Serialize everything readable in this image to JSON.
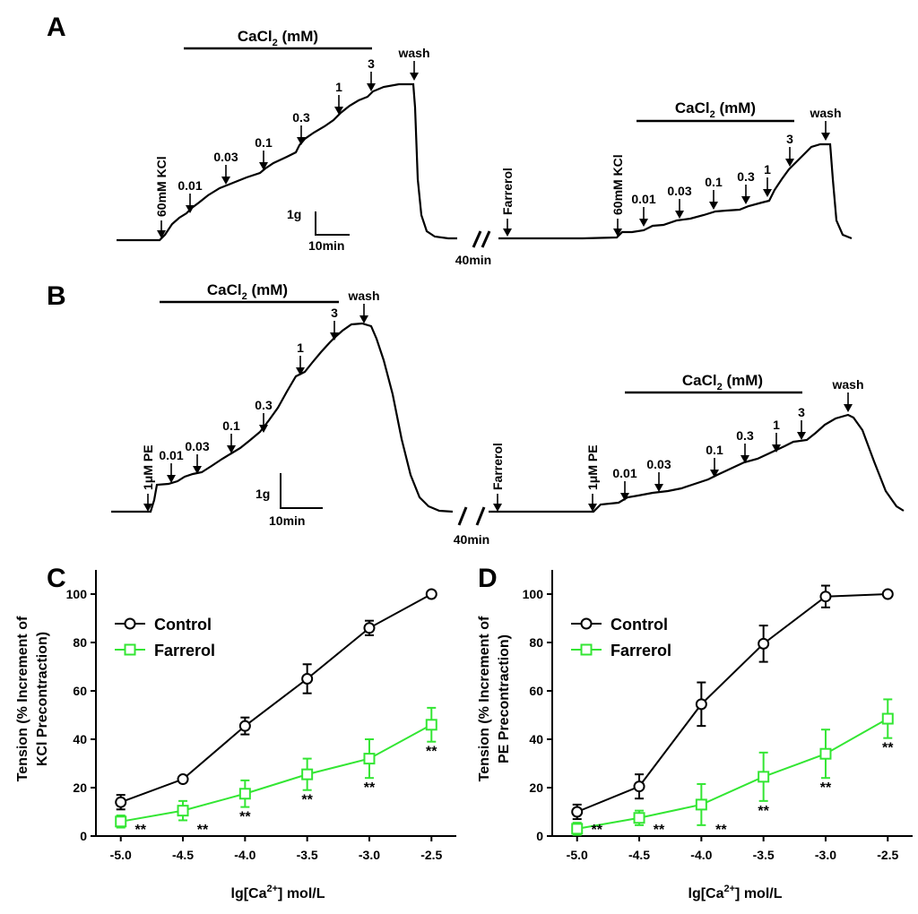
{
  "panels": {
    "A": {
      "label": "A",
      "left": {
        "header": "CaCl",
        "header_sub": "2",
        "header_unit": " (mM)",
        "stim": "60mM KCl",
        "doses": [
          "0.01",
          "0.03",
          "0.1",
          "0.3",
          "1",
          "3"
        ],
        "wash": "wash"
      },
      "right": {
        "header": "CaCl",
        "header_sub": "2",
        "header_unit": " (mM)",
        "drug": "Farrerol",
        "stim": "60mM KCl",
        "doses": [
          "0.01",
          "0.03",
          "0.1",
          "0.3",
          "1",
          "3"
        ],
        "wash": "wash"
      },
      "gap": "40min",
      "scale_y": "1g",
      "scale_x": "10min"
    },
    "B": {
      "label": "B",
      "left": {
        "header": "CaCl",
        "header_sub": "2",
        "header_unit": " (mM)",
        "stim": "1μM PE",
        "doses": [
          "0.01",
          "0.03",
          "0.1",
          "0.3",
          "1",
          "3"
        ],
        "wash": "wash"
      },
      "right": {
        "header": "CaCl",
        "header_sub": "2",
        "header_unit": " (mM)",
        "drug": "Farrerol",
        "stim": "1μM PE",
        "doses": [
          "0.01",
          "0.03",
          "0.1",
          "0.3",
          "1",
          "3"
        ],
        "wash": "wash"
      },
      "gap": "40min",
      "scale_y": "1g",
      "scale_x": "10min"
    }
  },
  "chart_data": [
    {
      "panel": "C",
      "type": "line",
      "x": [
        -5.0,
        -4.5,
        -4.0,
        -3.5,
        -3.0,
        -2.5
      ],
      "x_tick_labels": [
        "-5.0",
        "-4.5",
        "-4.0",
        "-3.5",
        "-3.0",
        "-2.5"
      ],
      "xlim": [
        -5.2,
        -2.3
      ],
      "ylim": [
        0,
        110
      ],
      "y_ticks": [
        0,
        20,
        40,
        60,
        80,
        100
      ],
      "xlabel": "lg[Ca",
      "xlabel_sup": "2+",
      "xlabel_tail": "] mol/L",
      "ylabel_1": "Tension (% Increment of",
      "ylabel_2": "KCl Precontraction)",
      "legend_position": "top-left",
      "series": [
        {
          "name": "Control",
          "color": "#000000",
          "marker": "circle",
          "values": [
            14,
            23.5,
            45.5,
            65,
            86,
            100
          ],
          "errors": [
            3,
            1,
            3.5,
            6,
            3,
            0.5
          ]
        },
        {
          "name": "Farrerol",
          "color": "#33e633",
          "marker": "square",
          "values": [
            6,
            10.5,
            17.5,
            25.5,
            32,
            46
          ],
          "errors": [
            2.5,
            4,
            5.5,
            6.5,
            8,
            7
          ]
        }
      ],
      "significance": {
        "mark": "**",
        "at": [
          -5.0,
          -4.5,
          -4.0,
          -3.5,
          -3.0,
          -2.5
        ]
      }
    },
    {
      "panel": "D",
      "type": "line",
      "x": [
        -5.0,
        -4.5,
        -4.0,
        -3.5,
        -3.0,
        -2.5
      ],
      "x_tick_labels": [
        "-5.0",
        "-4.5",
        "-4.0",
        "-3.5",
        "-3.0",
        "-2.5"
      ],
      "xlim": [
        -5.2,
        -2.3
      ],
      "ylim": [
        0,
        110
      ],
      "y_ticks": [
        0,
        20,
        40,
        60,
        80,
        100
      ],
      "xlabel": "lg[Ca",
      "xlabel_sup": "2+",
      "xlabel_tail": "] mol/L",
      "ylabel_1": "Tension (% Increment of",
      "ylabel_2": "PE Precontraction)",
      "legend_position": "top-left",
      "series": [
        {
          "name": "Control",
          "color": "#000000",
          "marker": "circle",
          "values": [
            10,
            20.5,
            54.5,
            79.5,
            99,
            100
          ],
          "errors": [
            3,
            5,
            9,
            7.5,
            4.5,
            0.5
          ]
        },
        {
          "name": "Farrerol",
          "color": "#33e633",
          "marker": "square",
          "values": [
            3,
            7.5,
            13,
            24.5,
            34,
            48.5
          ],
          "errors": [
            2.5,
            3,
            8.5,
            10,
            10,
            8
          ]
        }
      ],
      "significance": {
        "mark": "**",
        "at": [
          -5.0,
          -4.5,
          -4.0,
          -3.5,
          -3.0,
          -2.5
        ]
      }
    }
  ]
}
